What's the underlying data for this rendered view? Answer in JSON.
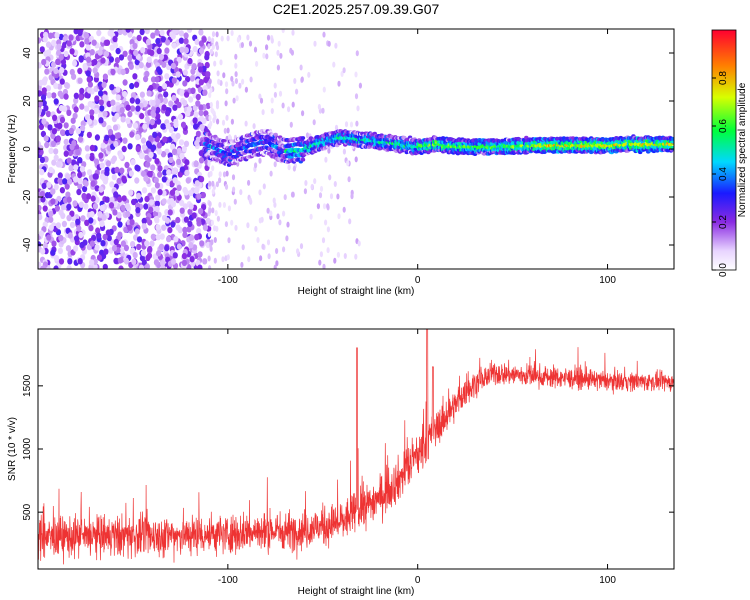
{
  "chart_data": [
    {
      "type": "heatmap",
      "title": "C2E1.2025.257.09.39.G07",
      "xlabel": "Height of straight line (km)",
      "ylabel": "Frequency (Hz)",
      "xlim": [
        -200,
        135
      ],
      "ylim": [
        -50,
        50
      ],
      "xticks": [
        -100,
        0,
        100
      ],
      "yticks": [
        -40,
        -20,
        0,
        20,
        40
      ],
      "ridge": {
        "x": [
          -112,
          -100,
          -90,
          -80,
          -70,
          -60,
          -50,
          -40,
          -30,
          -20,
          -10,
          0,
          10,
          20,
          40,
          60,
          80,
          100,
          110,
          135
        ],
        "y": [
          2,
          -2,
          1,
          3,
          -1,
          0,
          3,
          5,
          4,
          3,
          2,
          1,
          2,
          1,
          1,
          1.5,
          1.5,
          1.5,
          2,
          2
        ]
      },
      "colorbar": {
        "label": "Normalized spectral amplitude",
        "range": [
          0,
          1
        ],
        "ticks": [
          "0.0",
          "0.2",
          "0.4",
          "0.6",
          "0.8"
        ]
      }
    },
    {
      "type": "line",
      "xlabel": "Height of straight line (km)",
      "ylabel": "SNR (10 * v/v)",
      "xlim": [
        -200,
        135
      ],
      "ylim": [
        50,
        1950
      ],
      "xticks": [
        -100,
        0,
        100
      ],
      "yticks": [
        500,
        1000,
        1500
      ],
      "series": [
        {
          "name": "SNR",
          "color": "#ee3333",
          "envelope_x": [
            -200,
            -150,
            -100,
            -60,
            -40,
            -30,
            -20,
            -10,
            0,
            10,
            20,
            30,
            40,
            60,
            80,
            100,
            135
          ],
          "envelope_y": [
            300,
            310,
            330,
            360,
            420,
            520,
            620,
            760,
            950,
            1160,
            1360,
            1520,
            1600,
            1580,
            1560,
            1540,
            1530
          ],
          "spread": [
            [
              -200,
              260
            ],
            [
              -60,
              240
            ],
            [
              0,
              280
            ],
            [
              30,
              150
            ],
            [
              135,
              110
            ]
          ]
        }
      ]
    }
  ]
}
